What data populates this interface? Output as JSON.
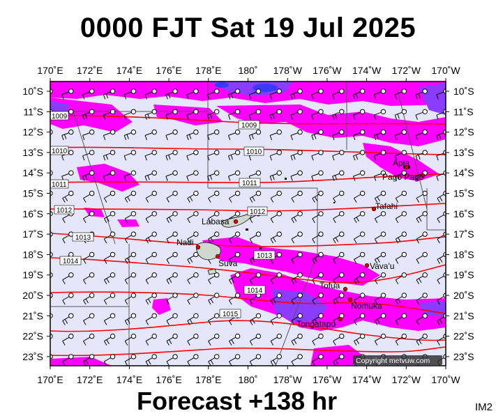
{
  "title": "0000 FJT Sat 19 Jul 2025",
  "footer": "Forecast +138 hr",
  "code": "IM2",
  "copyright": "Copyright metvuw.com",
  "lon_labels": [
    "170˚E",
    "172˚E",
    "174˚E",
    "176˚E",
    "178˚E",
    "180˚",
    "178˚W",
    "176˚W",
    "174˚W",
    "172˚W",
    "170˚W"
  ],
  "lat_labels": [
    "10˚S",
    "11˚S",
    "12˚S",
    "13˚S",
    "14˚S",
    "15˚S",
    "16˚S",
    "17˚S",
    "18˚S",
    "19˚S",
    "20˚S",
    "21˚S",
    "22˚S",
    "23˚S"
  ],
  "isobar_labels": [
    "1009",
    "1009",
    "1010",
    "1010",
    "1011",
    "1011",
    "1012",
    "1012",
    "1013",
    "1013",
    "1014",
    "1014",
    "1015"
  ],
  "places": [
    "Apia",
    "Pago Pago",
    "Tafahi",
    "Labasa",
    "Nadi",
    "Suva",
    "Vava'u",
    "Tofua",
    "Nomuka",
    "Tongatapu"
  ],
  "colors": {
    "background": "#e6e6fa",
    "rain_light": "#ff00ff",
    "rain_heavy": "#8040ff",
    "isobar": "#ff0000"
  }
}
